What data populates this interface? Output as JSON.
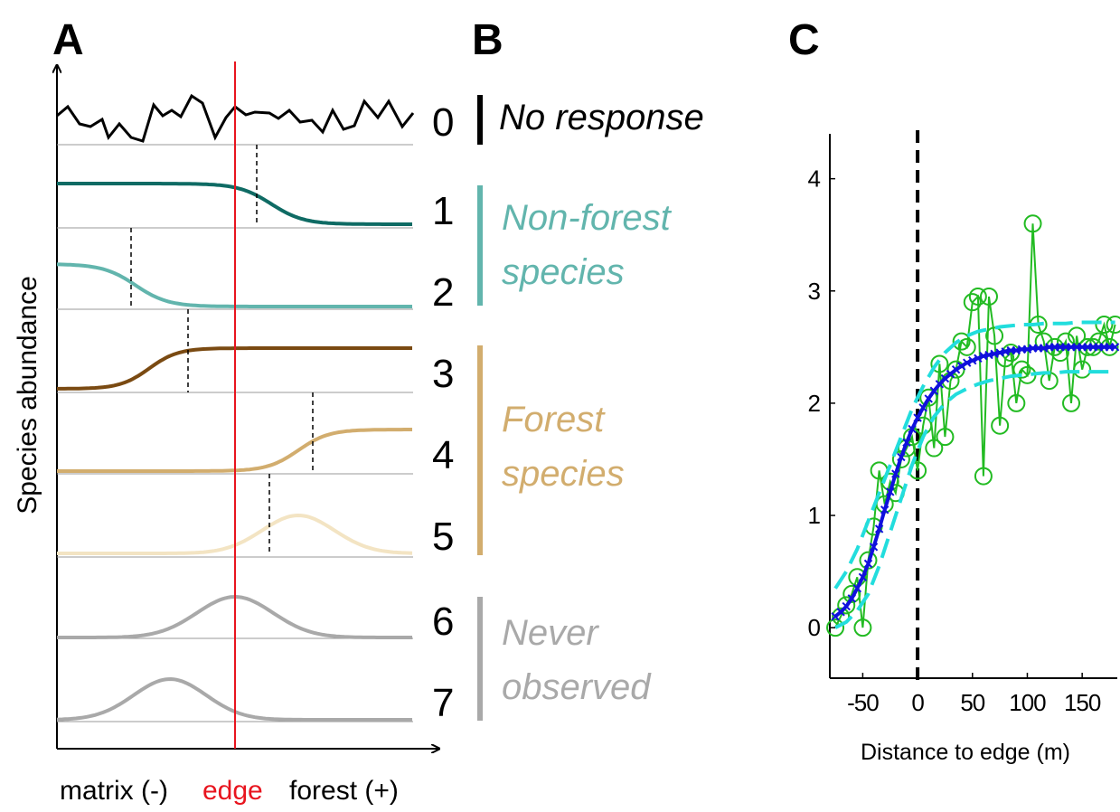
{
  "panels": {
    "a": "A",
    "b": "B",
    "c": "C"
  },
  "panel_a": {
    "ylabel": "Species abundance",
    "x_left": "matrix (-)",
    "x_edge": "edge",
    "x_right": "forest (+)",
    "edge_color": "#e8141e"
  },
  "responses": [
    {
      "num": "0",
      "color": "#000000"
    },
    {
      "num": "1",
      "color": "#0f6b64"
    },
    {
      "num": "2",
      "color": "#62b5ad"
    },
    {
      "num": "3",
      "color": "#7a4a12"
    },
    {
      "num": "4",
      "color": "#d2ad6e"
    },
    {
      "num": "5",
      "color": "#f3e4c3"
    },
    {
      "num": "6",
      "color": "#a9a9a9"
    },
    {
      "num": "7",
      "color": "#a9a9a9"
    }
  ],
  "groups": [
    {
      "line1": "No response",
      "line2": "",
      "color": "#000000"
    },
    {
      "line1": "Non-forest",
      "line2": "species",
      "color": "#62b5ad"
    },
    {
      "line1": "Forest",
      "line2": "species",
      "color": "#d2ad6e"
    },
    {
      "line1": "Never",
      "line2": "observed",
      "color": "#a9a9a9"
    }
  ],
  "chart_data": {
    "type": "line",
    "xlabel": "Distance to edge (m)",
    "ylabel": "",
    "xlim": [
      -80,
      182
    ],
    "ylim": [
      -0.45,
      4.4
    ],
    "xticks": [
      -50,
      0,
      50,
      100,
      150
    ],
    "xtick_labels": [
      "-50",
      "0",
      "50",
      "100",
      "150"
    ],
    "yticks": [
      0,
      1,
      2,
      3,
      4
    ],
    "ytick_labels": [
      "0",
      "1",
      "2",
      "3",
      "4"
    ],
    "edge_x": 0,
    "series": [
      {
        "color": "#22bb22",
        "style": "observed",
        "x": [
          -75,
          -70,
          -65,
          -60,
          -55,
          -50,
          -45,
          -40,
          -35,
          -30,
          -25,
          -20,
          -15,
          -10,
          -5,
          0,
          5,
          10,
          15,
          20,
          25,
          30,
          35,
          40,
          45,
          50,
          55,
          60,
          65,
          70,
          75,
          80,
          85,
          90,
          95,
          100,
          105,
          110,
          115,
          120,
          125,
          130,
          135,
          140,
          145,
          150,
          155,
          160,
          165,
          170,
          175,
          180
        ],
        "y": [
          0.0,
          0.1,
          0.2,
          0.3,
          0.45,
          0.0,
          0.6,
          0.9,
          1.4,
          1.1,
          1.3,
          1.2,
          1.5,
          1.6,
          1.7,
          1.4,
          1.8,
          2.05,
          1.6,
          2.35,
          1.7,
          2.2,
          2.3,
          2.55,
          2.5,
          2.9,
          2.95,
          1.35,
          2.95,
          2.6,
          1.8,
          2.4,
          2.45,
          2.0,
          2.3,
          2.25,
          3.6,
          2.7,
          2.55,
          2.2,
          2.5,
          2.45,
          2.55,
          2.0,
          2.6,
          2.3,
          2.5,
          2.5,
          2.55,
          2.7,
          2.5,
          2.7
        ]
      },
      {
        "color": "#1010dd",
        "style": "fitted",
        "x": [
          -75,
          -70,
          -65,
          -60,
          -55,
          -50,
          -45,
          -40,
          -35,
          -30,
          -25,
          -20,
          -15,
          -10,
          -5,
          0,
          5,
          10,
          15,
          20,
          25,
          30,
          35,
          40,
          45,
          50,
          55,
          60,
          65,
          70,
          75,
          80,
          85,
          90,
          95,
          100,
          105,
          110,
          115,
          120,
          125,
          130,
          135,
          140,
          145,
          150,
          155,
          160,
          165,
          170,
          175,
          180
        ],
        "y": [
          0.1,
          0.14,
          0.19,
          0.26,
          0.35,
          0.45,
          0.57,
          0.72,
          0.88,
          1.05,
          1.21,
          1.37,
          1.52,
          1.65,
          1.77,
          1.87,
          1.96,
          2.04,
          2.11,
          2.17,
          2.22,
          2.26,
          2.3,
          2.33,
          2.36,
          2.38,
          2.4,
          2.42,
          2.43,
          2.44,
          2.45,
          2.46,
          2.47,
          2.47,
          2.48,
          2.48,
          2.49,
          2.49,
          2.49,
          2.5,
          2.5,
          2.5,
          2.5,
          2.5,
          2.5,
          2.5,
          2.5,
          2.5,
          2.5,
          2.5,
          2.5,
          2.5
        ]
      },
      {
        "color": "#22dddd",
        "style": "upper bound",
        "x": [
          -75,
          -65,
          -55,
          -45,
          -35,
          -25,
          -15,
          -5,
          5,
          15,
          25,
          35,
          45,
          55,
          65,
          75,
          85,
          95,
          105,
          115,
          125,
          135,
          145,
          155,
          165,
          180
        ],
        "y": [
          0.35,
          0.5,
          0.7,
          0.95,
          1.2,
          1.45,
          1.7,
          1.95,
          2.15,
          2.32,
          2.45,
          2.54,
          2.6,
          2.64,
          2.66,
          2.68,
          2.69,
          2.7,
          2.7,
          2.71,
          2.71,
          2.71,
          2.72,
          2.72,
          2.72,
          2.72
        ]
      },
      {
        "color": "#22dddd",
        "style": "lower bound",
        "x": [
          -75,
          -65,
          -55,
          -45,
          -35,
          -25,
          -15,
          -5,
          5,
          15,
          25,
          35,
          45,
          55,
          65,
          75,
          85,
          95,
          105,
          115,
          125,
          135,
          145,
          155,
          165,
          180
        ],
        "y": [
          0.0,
          0.05,
          0.15,
          0.3,
          0.55,
          0.85,
          1.15,
          1.45,
          1.7,
          1.88,
          2.0,
          2.08,
          2.13,
          2.17,
          2.2,
          2.22,
          2.24,
          2.25,
          2.26,
          2.27,
          2.27,
          2.28,
          2.28,
          2.28,
          2.28,
          2.28
        ]
      }
    ]
  }
}
